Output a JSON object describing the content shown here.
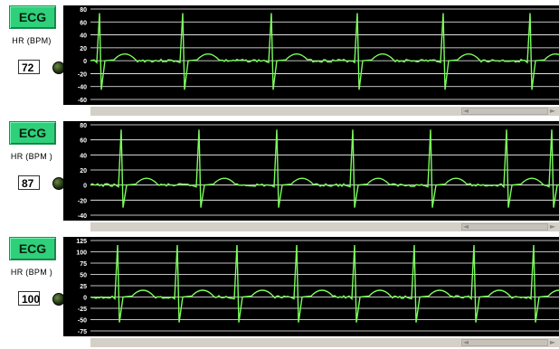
{
  "colors": {
    "trace": "#7CFC5C",
    "grid": "#ffffff",
    "button": "#2fd07a"
  },
  "panels": [
    {
      "button_label": "ECG",
      "hr_label": "HR (BPM)",
      "hr_value": "72",
      "y_ticks": [
        "80",
        "60",
        "40",
        "20",
        "0",
        "-20",
        "-40",
        "-60"
      ],
      "ylim": [
        -60,
        80
      ]
    },
    {
      "button_label": "ECG",
      "hr_label": "HR (BPM )",
      "hr_value": "87",
      "y_ticks": [
        "80",
        "60",
        "40",
        "20",
        "0",
        "-20",
        "-40"
      ],
      "ylim": [
        -40,
        80
      ]
    },
    {
      "button_label": "ECG",
      "hr_label": "HR (BPM )",
      "hr_value": "100",
      "y_ticks": [
        "125",
        "100",
        "75",
        "50",
        "25",
        "0",
        "-25",
        "-50",
        "-75"
      ],
      "ylim": [
        -75,
        125
      ]
    }
  ],
  "scrollbar": {
    "left_arrow": "◄",
    "right_arrow": "►"
  }
}
